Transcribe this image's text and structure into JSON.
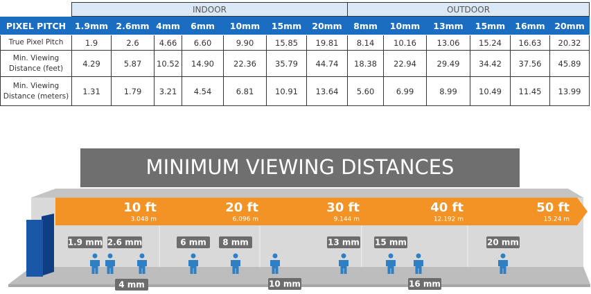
{
  "table": {
    "groups": [
      "INDOOR",
      "OUTDOOR"
    ],
    "header": [
      "PIXEL PITCH",
      "1.9mm",
      "2.6mm",
      "4mm",
      "6mm",
      "10mm",
      "15mm",
      "20mm",
      "8mm",
      "10mm",
      "13mm",
      "15mm",
      "16mm",
      "20mm"
    ],
    "rows": [
      [
        "True Pixel Pitch",
        "1.9",
        "2.6",
        "4.66",
        "6.60",
        "9.90",
        "15.85",
        "19.81",
        "8.14",
        "10.16",
        "13.06",
        "15.24",
        "16.63",
        "20.32"
      ],
      [
        "Min. Viewing Distance (feet)",
        "4.29",
        "5.87",
        "10.52",
        "14.90",
        "22.36",
        "35.79",
        "44.74",
        "18.38",
        "22.94",
        "29.49",
        "34.42",
        "37.56",
        "45.89"
      ],
      [
        "Min. Viewing Distance (meters)",
        "1.31",
        "1.79",
        "3.21",
        "4.54",
        "6.81",
        "10.91",
        "13.64",
        "5.60",
        "6.99",
        "8.99",
        "10.49",
        "11.45",
        "13.99"
      ]
    ]
  },
  "diagram": {
    "title": "MINIMUM VIEWING DISTANCES",
    "distances": [
      {
        "feet": "10 ft",
        "meters": "3.048 m"
      },
      {
        "feet": "20 ft",
        "meters": "6.096 m"
      },
      {
        "feet": "30 ft",
        "meters": "9.144 m"
      },
      {
        "feet": "40 ft",
        "meters": "12.192 m"
      },
      {
        "feet": "50 ft",
        "meters": "15.24 m"
      }
    ],
    "pitch_labels": [
      "1.9 mm",
      "2.6 mm",
      "4 mm",
      "6 mm",
      "8 mm",
      "10 mm",
      "13 mm",
      "15 mm",
      "16 mm",
      "20 mm"
    ]
  }
}
